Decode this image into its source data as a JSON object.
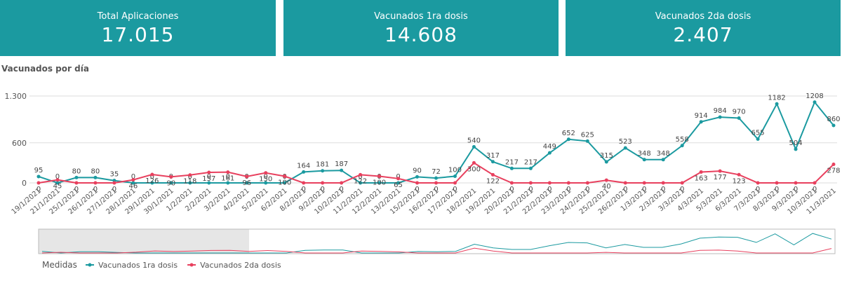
{
  "kpis": [
    {
      "label": "Total Aplicaciones",
      "value": "17.015"
    },
    {
      "label": "Vacunados 1ra dosis",
      "value": "14.608"
    },
    {
      "label": "Vacunados 2da dosis",
      "value": "2.407"
    }
  ],
  "chart_data": {
    "type": "line",
    "title": "Vacunados por día",
    "legend_title": "Medidas",
    "categories": [
      "19/1/2021",
      "21/1/2021",
      "25/1/2021",
      "26/1/2021",
      "27/1/2021",
      "28/1/2021",
      "29/1/2021",
      "30/1/2021",
      "1/2/2021",
      "2/2/2021",
      "3/2/2021",
      "4/2/2021",
      "5/2/2021",
      "6/2/2021",
      "8/2/2021",
      "9/2/2021",
      "10/2/2021",
      "11/2/2021",
      "12/2/2021",
      "13/2/2021",
      "15/2/2021",
      "16/2/2021",
      "17/2/2021",
      "18/2/2021",
      "19/2/2021",
      "20/2/2021",
      "21/2/2021",
      "22/2/2021",
      "23/2/2021",
      "24/2/2021",
      "25/2/2021",
      "26/2/2021",
      "1/3/2021",
      "2/3/2021",
      "3/3/2021",
      "4/3/2021",
      "5/3/2021",
      "6/3/2021",
      "7/3/2021",
      "8/3/2021",
      "9/3/2021",
      "10/3/2021",
      "11/3/2021"
    ],
    "series": [
      {
        "name": "Vacunados 1ra dosis",
        "color": "#1b9aa0",
        "values": [
          95,
          0,
          80,
          80,
          35,
          0,
          0,
          0,
          0,
          0,
          0,
          0,
          0,
          0,
          164,
          181,
          187,
          0,
          0,
          0,
          90,
          72,
          100,
          540,
          317,
          217,
          217,
          449,
          652,
          625,
          315,
          523,
          348,
          348,
          558,
          914,
          984,
          970,
          655,
          1182,
          504,
          1208,
          860
        ]
      },
      {
        "name": "Vacunados 2da dosis",
        "color": "#e8405e",
        "values": [
          0,
          45,
          0,
          0,
          0,
          46,
          126,
          90,
          118,
          157,
          161,
          96,
          150,
          100,
          0,
          0,
          0,
          122,
          100,
          65,
          0,
          0,
          0,
          300,
          122,
          0,
          0,
          0,
          0,
          0,
          40,
          0,
          0,
          0,
          0,
          163,
          177,
          123,
          0,
          0,
          0,
          0,
          278
        ]
      }
    ],
    "ylim": [
      0,
      1300
    ],
    "yticks": [
      0,
      600,
      {
        "value": 1300,
        "label": "1.300"
      }
    ],
    "grid": true
  }
}
